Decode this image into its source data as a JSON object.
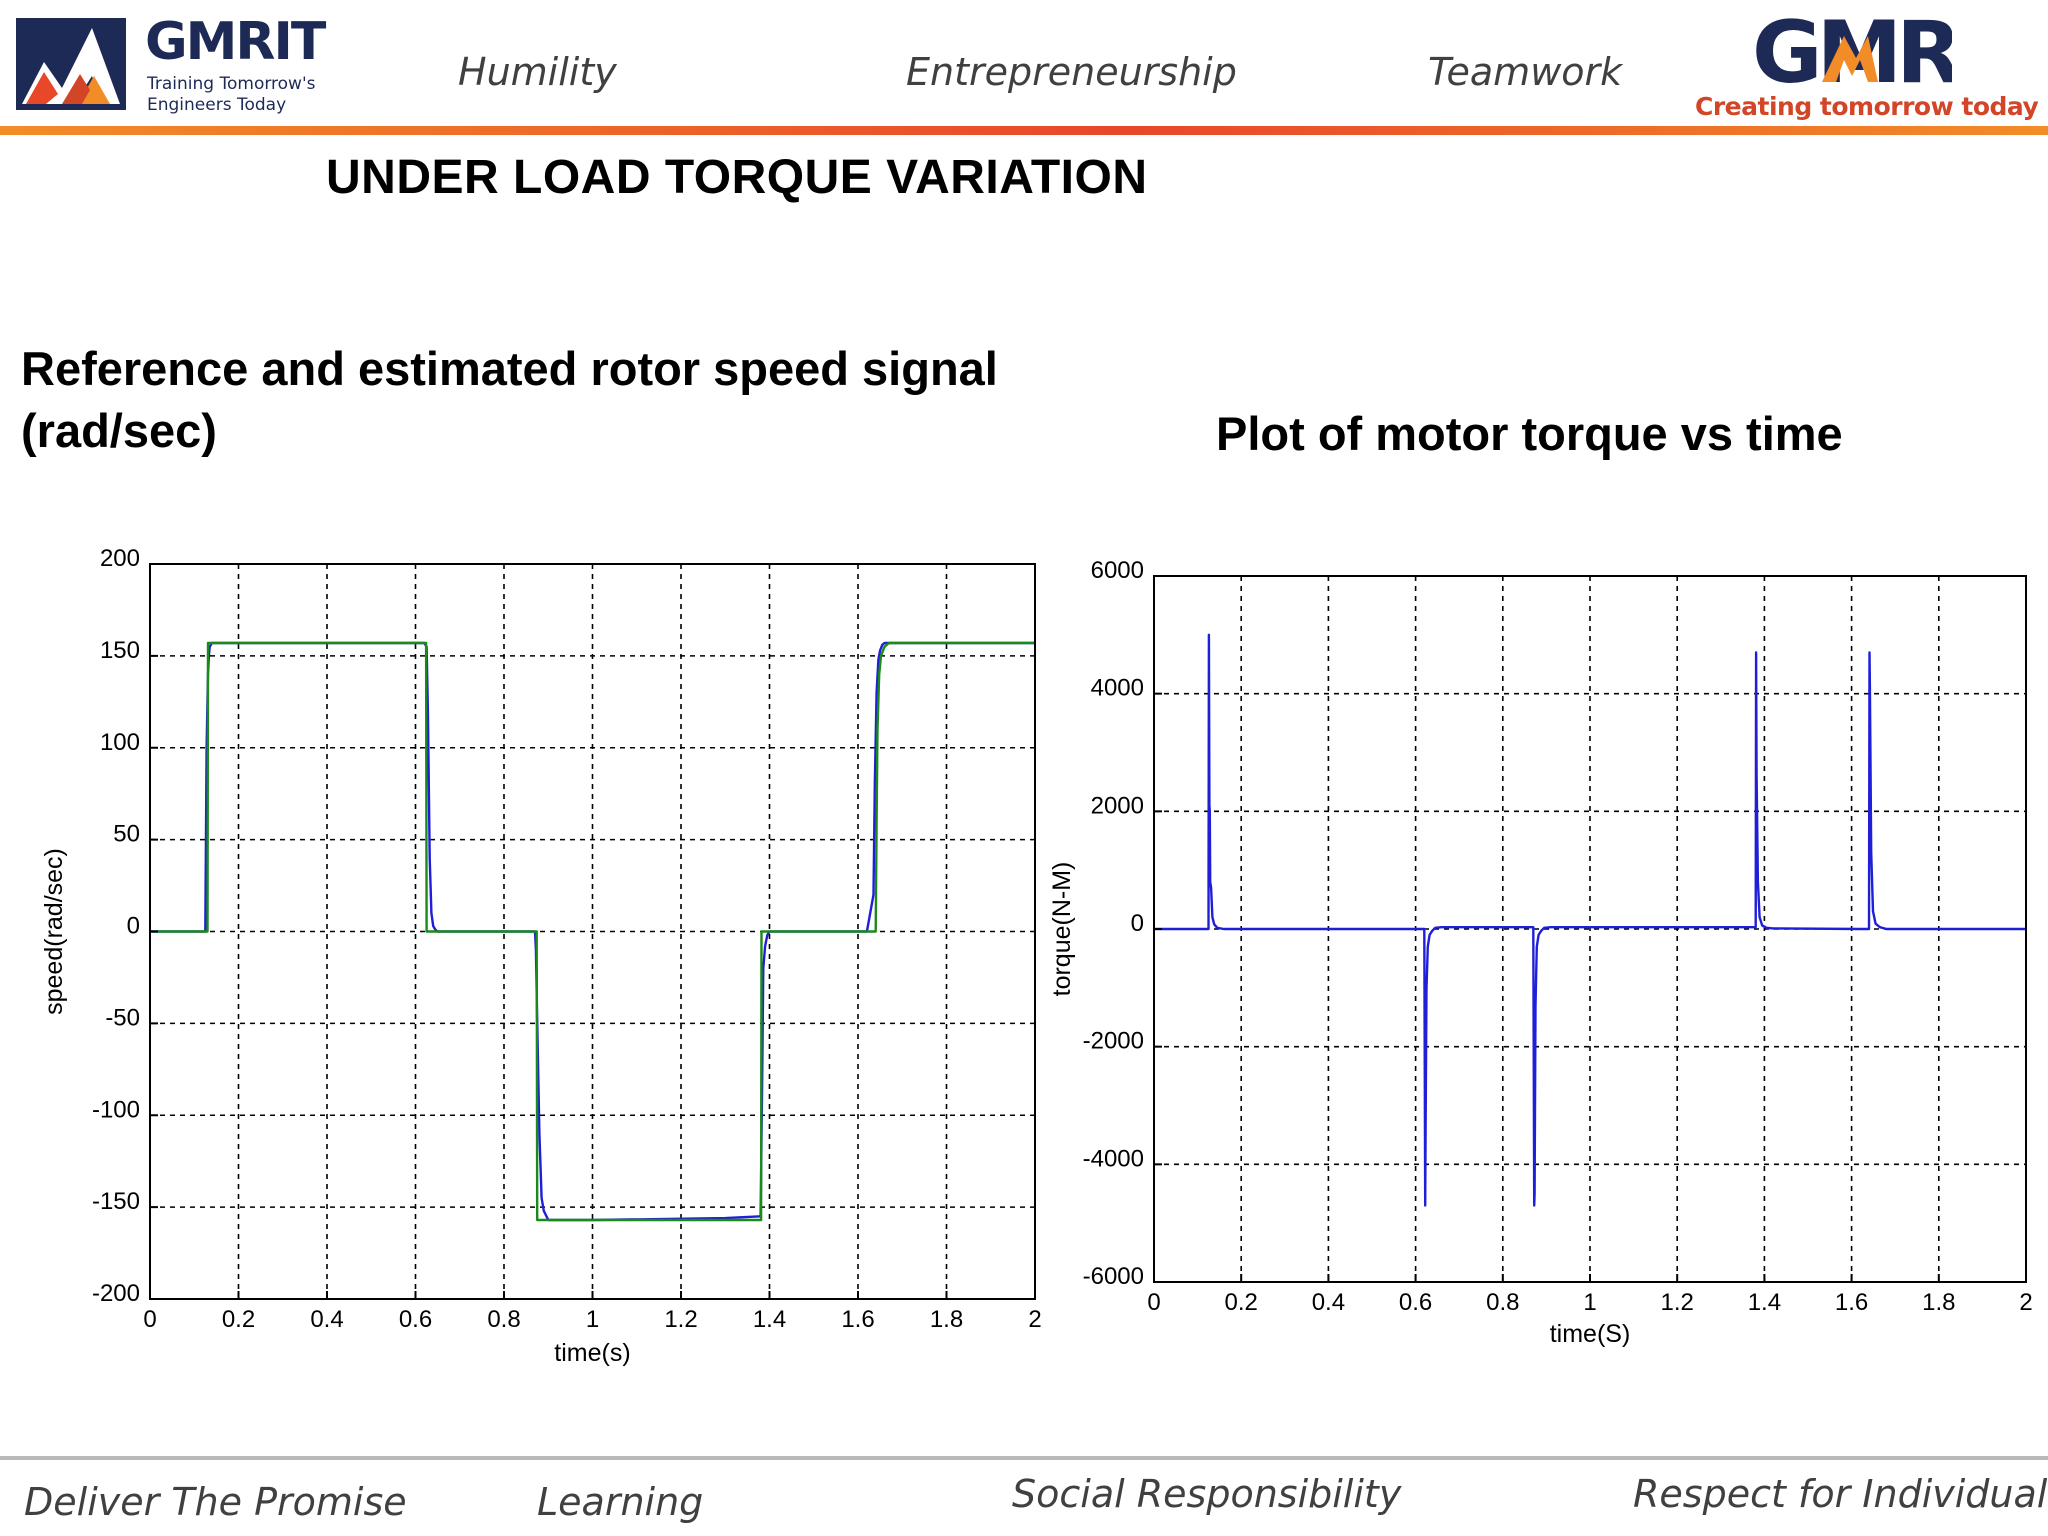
{
  "header": {
    "brand_left": "GMRIT",
    "brand_left_tagline": [
      "Training Tomorrow's",
      "Engineers Today"
    ],
    "values": [
      "Humility",
      "Entrepreneurship",
      "Teamwork"
    ],
    "brand_right": "GMR",
    "brand_right_tagline": "Creating tomorrow today"
  },
  "slide": {
    "title": "UNDER LOAD TORQUE VARIATION",
    "left_subtitle": "Reference and estimated rotor speed signal (rad/sec)",
    "right_subtitle": "Plot of motor torque vs time"
  },
  "footer": {
    "values": [
      "Deliver The Promise",
      "Learning",
      "Social Responsibility",
      "Respect for Individual"
    ]
  },
  "colors": {
    "estimated": "#1f1fd9",
    "reference": "#1a8a1a",
    "header_gradient": "#f28c28",
    "brand_navy": "#1e2a56",
    "brand_red": "#d24527"
  },
  "chart_data": [
    {
      "type": "line",
      "title": "",
      "xlabel": "time(s)",
      "ylabel": "speed(rad/sec)",
      "xlim": [
        0,
        2
      ],
      "ylim": [
        -200,
        200
      ],
      "xticks": [
        0,
        0.2,
        0.4,
        0.6,
        0.8,
        1,
        1.2,
        1.4,
        1.6,
        1.8,
        2
      ],
      "yticks": [
        -200,
        -150,
        -100,
        -50,
        0,
        50,
        100,
        150,
        200
      ],
      "grid": true,
      "series": [
        {
          "color": "#1f1fd9",
          "x": [
            0,
            0.125,
            0.128,
            0.131,
            0.133,
            0.135,
            0.14,
            0.2,
            0.62,
            0.625,
            0.628,
            0.632,
            0.636,
            0.64,
            0.645,
            0.65,
            0.66,
            0.87,
            0.872,
            0.876,
            0.88,
            0.885,
            0.89,
            0.9,
            1.0,
            1.3,
            1.38,
            1.383,
            1.386,
            1.39,
            1.395,
            1.4,
            1.45,
            1.62,
            1.635,
            1.638,
            1.642,
            1.646,
            1.65,
            1.655,
            1.66,
            1.7,
            2
          ],
          "y": [
            0,
            0,
            100,
            140,
            150,
            155,
            157,
            157,
            157,
            155,
            120,
            40,
            10,
            3,
            1,
            0,
            0,
            0,
            -10,
            -60,
            -110,
            -145,
            -152,
            -157,
            -157,
            -156,
            -155,
            -90,
            -20,
            -8,
            -2,
            0,
            0,
            0,
            20,
            80,
            130,
            148,
            153,
            156,
            157,
            157,
            157
          ]
        },
        {
          "color": "#1a8a1a",
          "x": [
            0,
            0.13,
            0.131,
            0.2,
            0.624,
            0.625,
            0.66,
            0.874,
            0.875,
            0.9,
            1.0,
            1.3,
            1.381,
            1.382,
            1.45,
            1.63,
            1.64,
            1.642,
            1.644,
            1.648,
            1.652,
            1.66,
            1.67,
            1.7,
            2
          ],
          "y": [
            0,
            0,
            157,
            157,
            157,
            0,
            0,
            0,
            -157,
            -157,
            -157,
            -157,
            -157,
            0,
            0,
            0,
            0,
            60,
            110,
            140,
            150,
            155,
            157,
            157,
            157
          ]
        }
      ]
    },
    {
      "type": "line",
      "title": "",
      "xlabel": "time(S)",
      "ylabel": "torque(N-M)",
      "xlim": [
        0,
        2
      ],
      "ylim": [
        -6000,
        6000
      ],
      "xticks": [
        0,
        0.2,
        0.4,
        0.6,
        0.8,
        1,
        1.2,
        1.4,
        1.6,
        1.8,
        2
      ],
      "yticks": [
        -6000,
        -4000,
        -2000,
        0,
        2000,
        4000,
        6000
      ],
      "grid": true,
      "series": [
        {
          "color": "#1f1fd9",
          "x": [
            0,
            0.125,
            0.126,
            0.127,
            0.128,
            0.129,
            0.131,
            0.134,
            0.138,
            0.145,
            0.16,
            0.62,
            0.622,
            0.623,
            0.625,
            0.628,
            0.632,
            0.638,
            0.645,
            0.66,
            0.87,
            0.872,
            0.873,
            0.875,
            0.878,
            0.882,
            0.888,
            0.895,
            0.91,
            1.38,
            1.381,
            1.382,
            1.385,
            1.389,
            1.395,
            1.405,
            1.42,
            1.62,
            1.64,
            1.641,
            1.642,
            1.645,
            1.649,
            1.655,
            1.665,
            1.68,
            2
          ],
          "y": [
            0,
            0,
            5000,
            2100,
            2000,
            800,
            700,
            200,
            80,
            20,
            0,
            0,
            -4700,
            -3400,
            -1000,
            -300,
            -100,
            -30,
            20,
            30,
            30,
            -4700,
            -4500,
            -1300,
            -300,
            -100,
            -30,
            20,
            30,
            30,
            4700,
            2600,
            800,
            200,
            60,
            20,
            10,
            0,
            0,
            4700,
            4100,
            1300,
            300,
            90,
            30,
            0,
            0
          ]
        }
      ]
    }
  ]
}
